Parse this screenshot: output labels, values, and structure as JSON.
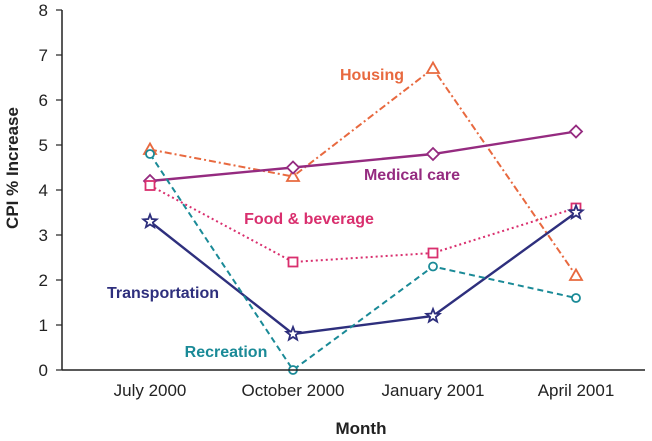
{
  "chart_data": {
    "type": "line",
    "title": "",
    "xlabel": "Month",
    "ylabel": "CPI % Increase",
    "categories": [
      "July 2000",
      "October 2000",
      "January 2001",
      "April 2001"
    ],
    "ylim": [
      0,
      8
    ],
    "yticks": [
      "0",
      "1",
      "2",
      "3",
      "4",
      "5",
      "6",
      "7",
      "8"
    ],
    "grid": false,
    "legend": "inline labels",
    "series": [
      {
        "name": "Housing",
        "values": [
          4.9,
          4.3,
          6.7,
          2.1
        ],
        "color": "#e8693f",
        "marker": "triangle",
        "dash": "dash-dot"
      },
      {
        "name": "Medical care",
        "values": [
          4.2,
          4.5,
          4.8,
          5.3
        ],
        "color": "#952b80",
        "marker": "diamond",
        "dash": "solid"
      },
      {
        "name": "Food & beverage",
        "values": [
          4.1,
          2.4,
          2.6,
          3.6
        ],
        "color": "#d92f6e",
        "marker": "square",
        "dash": "dotted"
      },
      {
        "name": "Transportation",
        "values": [
          3.3,
          0.8,
          1.2,
          3.5
        ],
        "color": "#2e2f7d",
        "marker": "star",
        "dash": "solid"
      },
      {
        "name": "Recreation",
        "values": [
          4.8,
          0.0,
          2.3,
          1.6
        ],
        "color": "#1a8a97",
        "marker": "circle",
        "dash": "dashed"
      }
    ]
  }
}
